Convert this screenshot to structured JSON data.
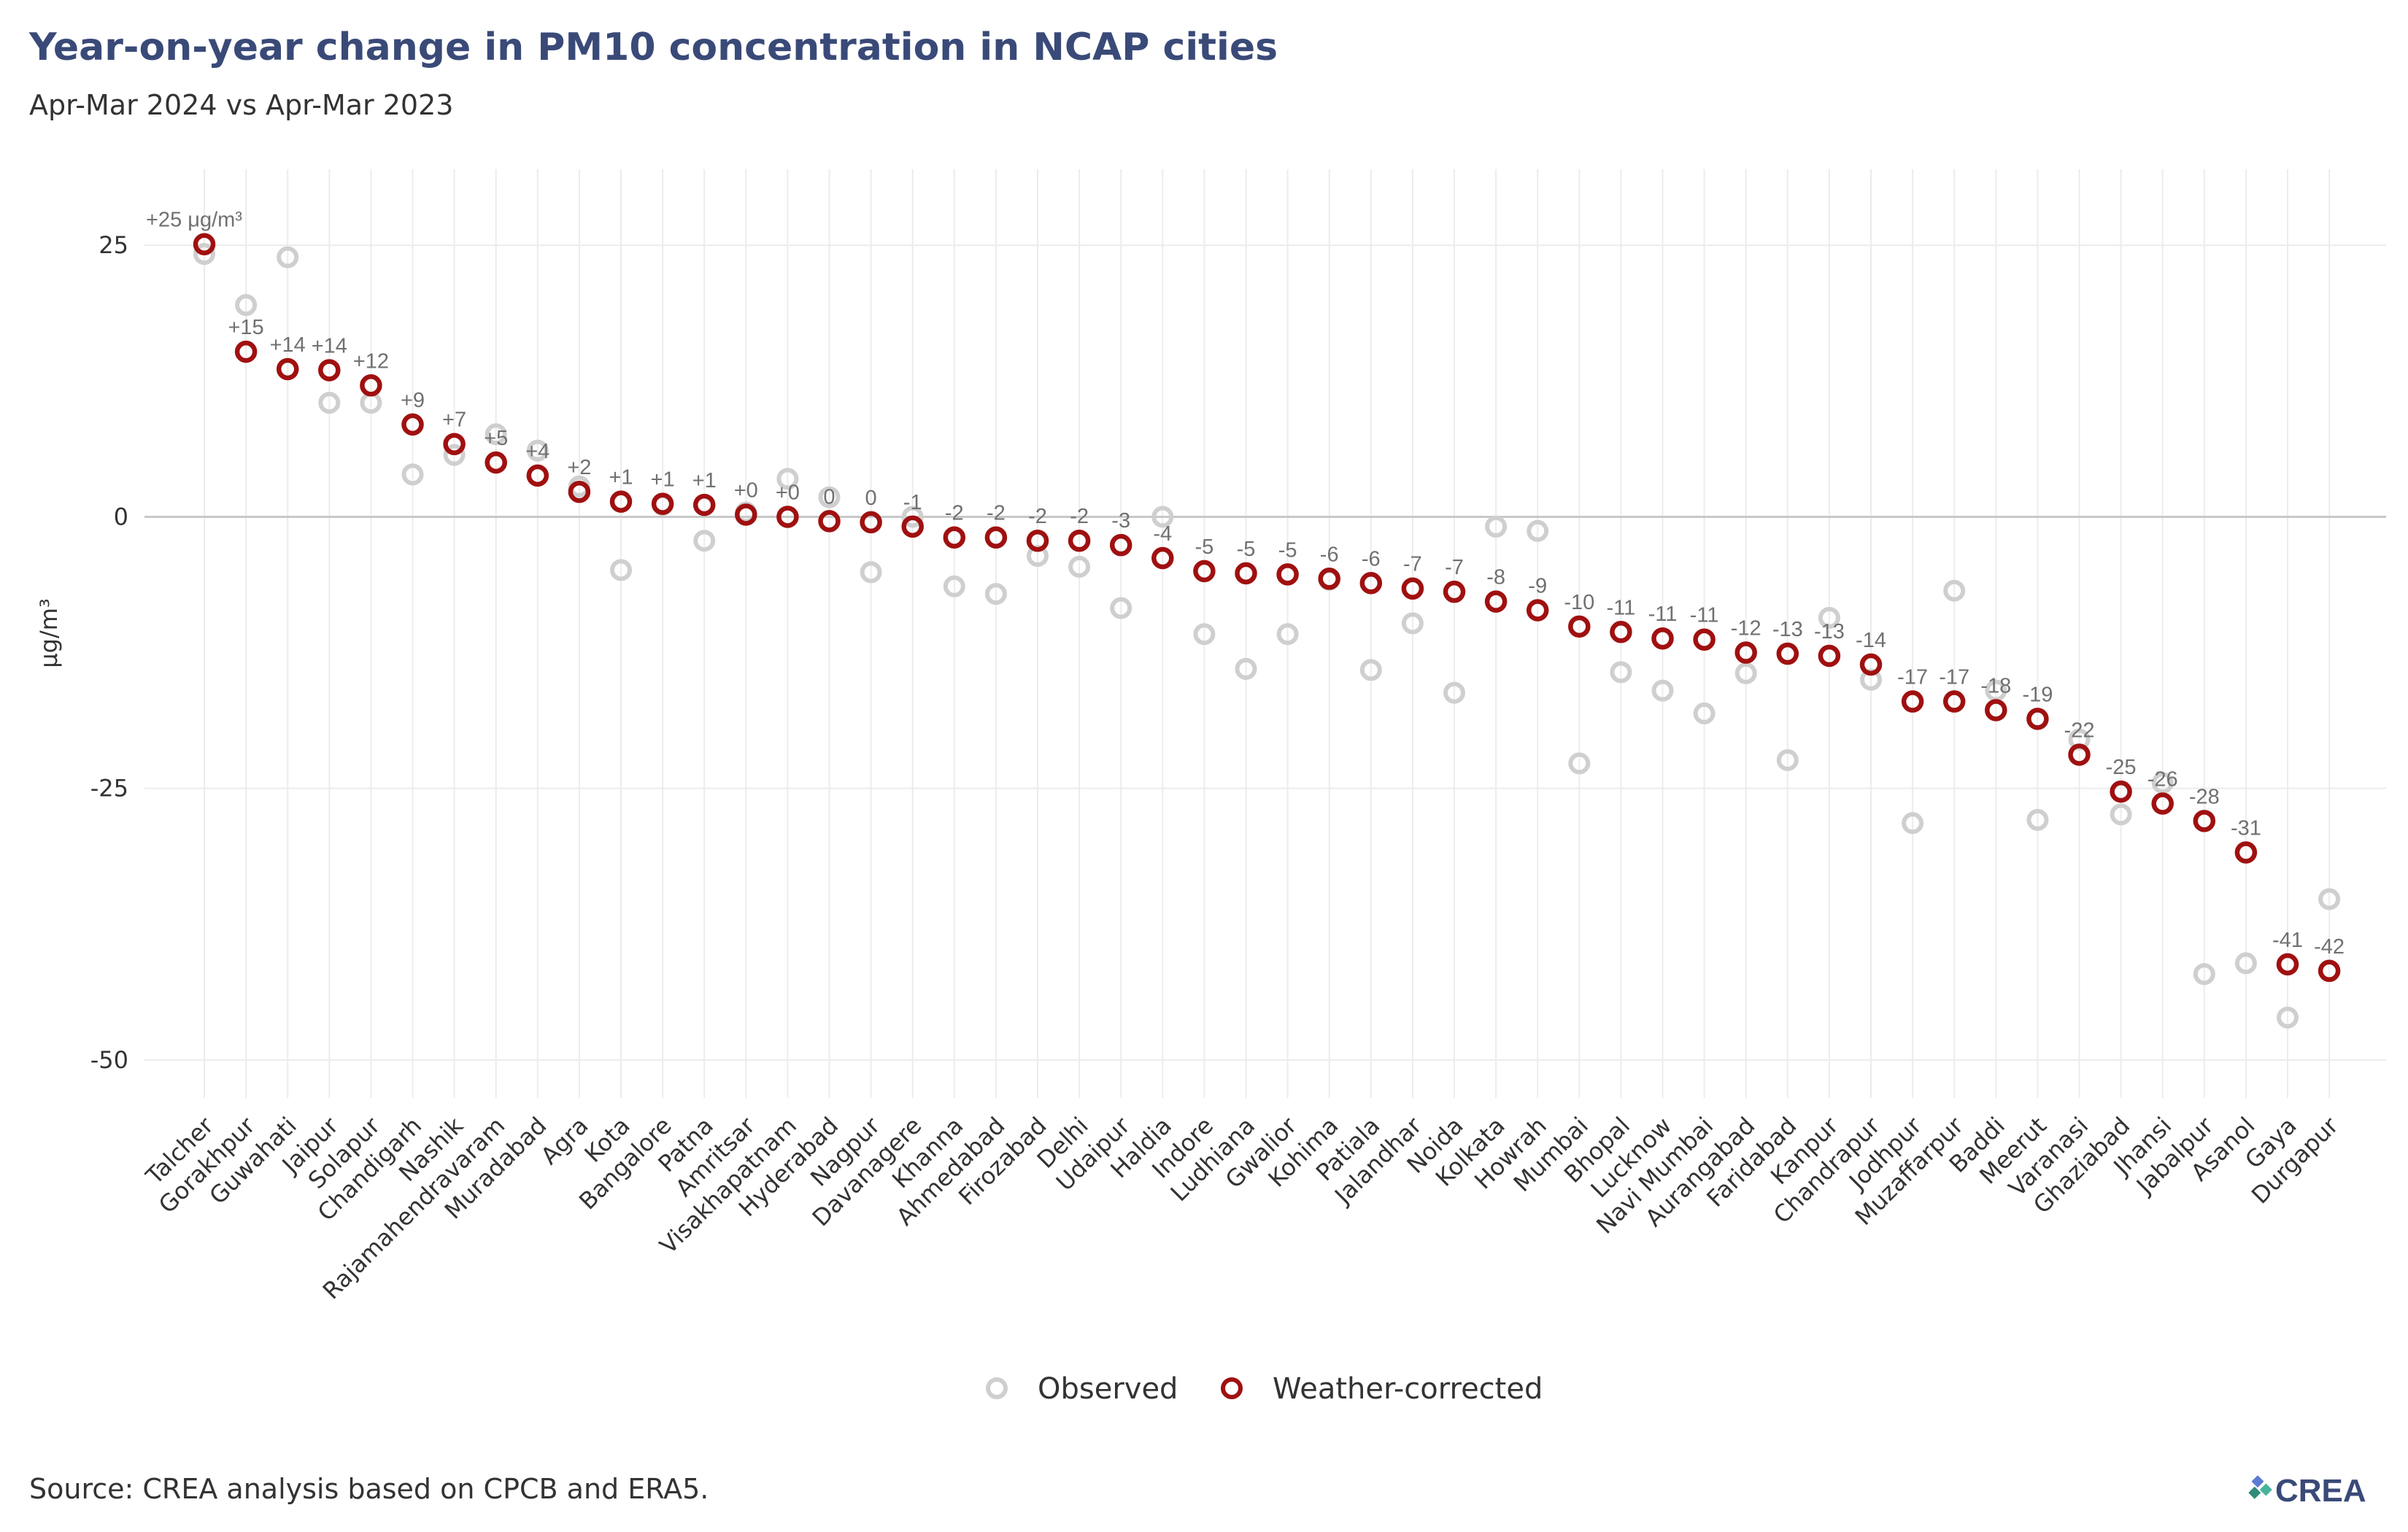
{
  "colors": {
    "observed": "#cfcfcf",
    "weather_corrected": "#a01010",
    "title": "#3a4a78",
    "grid": "#ececec",
    "zero_line": "#c8c8c8",
    "label": "#707070"
  },
  "source_note": "Source: CREA analysis based on CPCB and ERA5.",
  "logo": {
    "text": "CREA",
    "icon": "crea-logo-icon"
  },
  "chart_data": {
    "type": "scatter",
    "title": "Year-on-year change in PM10 concentration in NCAP cities",
    "subtitle": "Apr-Mar 2024 vs Apr-Mar 2023",
    "ylabel": "μg/m³",
    "xlabel": "",
    "ylim": [
      -53.5,
      32
    ],
    "yticks": [
      25,
      0,
      -25,
      -50
    ],
    "ytick_labels": [
      "25",
      "0",
      "-25",
      "-50"
    ],
    "grid": true,
    "legend_position": "bottom",
    "categories": [
      "Talcher",
      "Gorakhpur",
      "Guwahati",
      "Jaipur",
      "Solapur",
      "Chandigarh",
      "Nashik",
      "Rajamahendravaram",
      "Muradabad",
      "Agra",
      "Kota",
      "Bangalore",
      "Patna",
      "Amritsar",
      "Visakhapatnam",
      "Hyderabad",
      "Nagpur",
      "Davanagere",
      "Khanna",
      "Ahmedabad",
      "Firozabad",
      "Delhi",
      "Udaipur",
      "Haldia",
      "Indore",
      "Ludhiana",
      "Gwalior",
      "Kohima",
      "Patiala",
      "Jalandhar",
      "Noida",
      "Kolkata",
      "Howrah",
      "Mumbai",
      "Bhopal",
      "Lucknow",
      "Navi Mumbai",
      "Aurangabad",
      "Faridabad",
      "Kanpur",
      "Chandrapur",
      "Jodhpur",
      "Muzaffarpur",
      "Baddi",
      "Meerut",
      "Varanasi",
      "Ghaziabad",
      "Jhansi",
      "Jabalpur",
      "Asanol",
      "Gaya",
      "Durgapur"
    ],
    "series": [
      {
        "name": "Observed",
        "values": [
          24.2,
          19.5,
          23.9,
          10.5,
          10.5,
          3.9,
          5.7,
          7.6,
          6.1,
          2.8,
          -4.9,
          1.1,
          -2.2,
          0.4,
          3.5,
          1.8,
          -5.1,
          0.0,
          -6.4,
          -7.1,
          -3.6,
          -4.6,
          -8.4,
          0.0,
          -10.8,
          -14.0,
          -10.8,
          -5.8,
          -14.1,
          -9.8,
          -16.2,
          -0.9,
          -1.3,
          -22.7,
          -14.3,
          -16.0,
          -18.1,
          -14.4,
          -22.4,
          -9.3,
          -15.0,
          -28.2,
          -6.8,
          -16.0,
          -27.9,
          -20.5,
          -27.4,
          -24.5,
          -42.1,
          -41.1,
          -46.1,
          -35.2
        ]
      },
      {
        "name": "Weather-corrected",
        "values": [
          25.1,
          15.2,
          13.6,
          13.5,
          12.1,
          8.5,
          6.7,
          5.0,
          3.8,
          2.3,
          1.4,
          1.2,
          1.1,
          0.2,
          0.0,
          -0.4,
          -0.5,
          -0.9,
          -1.9,
          -1.9,
          -2.2,
          -2.2,
          -2.6,
          -3.8,
          -5.0,
          -5.2,
          -5.3,
          -5.7,
          -6.1,
          -6.6,
          -6.9,
          -7.8,
          -8.6,
          -10.1,
          -10.6,
          -11.2,
          -11.3,
          -12.5,
          -12.6,
          -12.8,
          -13.6,
          -17.0,
          -17.0,
          -17.8,
          -18.6,
          -21.9,
          -25.3,
          -26.4,
          -28.0,
          -30.9,
          -41.2,
          -41.8
        ]
      }
    ],
    "data_labels": [
      "+25 μg/m³",
      "+15",
      "+14",
      "+14",
      "+12",
      "+9",
      "+7",
      "+5",
      "+4",
      "+2",
      "+1",
      "+1",
      "+1",
      "+0",
      "+0",
      "0",
      "0",
      "-1",
      "-2",
      "-2",
      "-2",
      "-2",
      "-3",
      "-4",
      "-5",
      "-5",
      "-5",
      "-6",
      "-6",
      "-7",
      "-7",
      "-8",
      "-9",
      "-10",
      "-11",
      "-11",
      "-11",
      "-12",
      "-13",
      "-13",
      "-14",
      "-17",
      "-17",
      "-18",
      "-19",
      "-22",
      "-25",
      "-26",
      "-28",
      "-31",
      "-41",
      "-42"
    ]
  }
}
